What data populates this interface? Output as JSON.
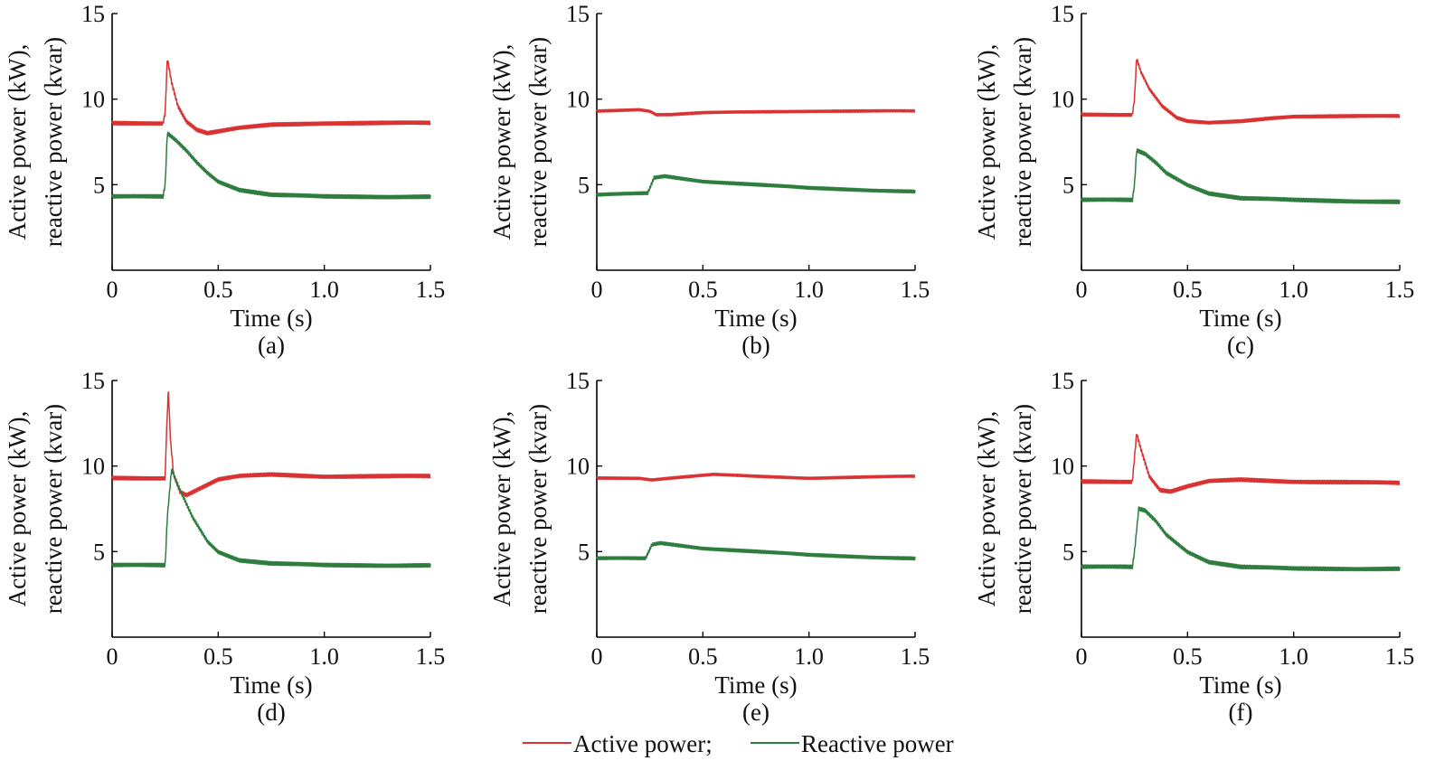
{
  "legend": {
    "items": [
      {
        "label": "Active power;",
        "color": "#d93232",
        "series": "active"
      },
      {
        "label": "Reactive power",
        "color": "#2e7d3e",
        "series": "reactive"
      }
    ]
  },
  "chart_data": [
    {
      "type": "line",
      "caption": "(a)",
      "xlabel": "Time (s)",
      "ylabel": "Active power (kW), reactive power (kvar)",
      "xlim": [
        0,
        1.5
      ],
      "ylim": [
        0,
        15
      ],
      "xticks": [
        {
          "v": 0,
          "t": "0"
        },
        {
          "v": 0.5,
          "t": "0.5"
        },
        {
          "v": 1.0,
          "t": "1.0"
        },
        {
          "v": 1.5,
          "t": "1.5"
        }
      ],
      "yticks": [
        {
          "v": 5,
          "t": "5"
        },
        {
          "v": 10,
          "t": "10"
        },
        {
          "v": 15,
          "t": "15"
        }
      ],
      "series": [
        {
          "key": "active",
          "color": "#d93232",
          "ripple": 0.12,
          "points": [
            [
              0,
              8.6
            ],
            [
              0.24,
              8.6
            ],
            [
              0.25,
              9.2
            ],
            [
              0.26,
              12.4
            ],
            [
              0.28,
              11.0
            ],
            [
              0.31,
              9.6
            ],
            [
              0.35,
              8.7
            ],
            [
              0.4,
              8.2
            ],
            [
              0.45,
              8.0
            ],
            [
              0.5,
              8.1
            ],
            [
              0.6,
              8.3
            ],
            [
              0.75,
              8.5
            ],
            [
              1.0,
              8.6
            ],
            [
              1.5,
              8.6
            ]
          ]
        },
        {
          "key": "reactive",
          "color": "#2e7d3e",
          "ripple": 0.12,
          "points": [
            [
              0,
              4.3
            ],
            [
              0.24,
              4.3
            ],
            [
              0.25,
              5.0
            ],
            [
              0.26,
              8.0
            ],
            [
              0.3,
              7.6
            ],
            [
              0.35,
              7.0
            ],
            [
              0.4,
              6.3
            ],
            [
              0.45,
              5.7
            ],
            [
              0.5,
              5.2
            ],
            [
              0.6,
              4.7
            ],
            [
              0.75,
              4.4
            ],
            [
              1.0,
              4.3
            ],
            [
              1.5,
              4.3
            ]
          ]
        }
      ]
    },
    {
      "type": "line",
      "caption": "(b)",
      "xlabel": "Time (s)",
      "ylabel": "Active power (kW), reactive power (kvar)",
      "xlim": [
        0,
        1.5
      ],
      "ylim": [
        0,
        15
      ],
      "xticks": [
        {
          "v": 0,
          "t": "0"
        },
        {
          "v": 0.5,
          "t": "0.5"
        },
        {
          "v": 1.0,
          "t": "1.0"
        },
        {
          "v": 1.5,
          "t": "1.5"
        }
      ],
      "yticks": [
        {
          "v": 5,
          "t": "5"
        },
        {
          "v": 10,
          "t": "10"
        },
        {
          "v": 15,
          "t": "15"
        }
      ],
      "series": [
        {
          "key": "active",
          "color": "#d93232",
          "ripple": 0.08,
          "points": [
            [
              0,
              9.3
            ],
            [
              0.2,
              9.4
            ],
            [
              0.25,
              9.3
            ],
            [
              0.28,
              9.1
            ],
            [
              0.35,
              9.1
            ],
            [
              0.5,
              9.2
            ],
            [
              1.0,
              9.3
            ],
            [
              1.5,
              9.3
            ]
          ]
        },
        {
          "key": "reactive",
          "color": "#2e7d3e",
          "ripple": 0.1,
          "points": [
            [
              0,
              4.4
            ],
            [
              0.24,
              4.5
            ],
            [
              0.27,
              5.4
            ],
            [
              0.32,
              5.5
            ],
            [
              0.5,
              5.2
            ],
            [
              0.75,
              5.0
            ],
            [
              1.0,
              4.8
            ],
            [
              1.25,
              4.7
            ],
            [
              1.5,
              4.6
            ]
          ]
        }
      ]
    },
    {
      "type": "line",
      "caption": "(c)",
      "xlabel": "Time (s)",
      "ylabel": "Active power (kW), reactive power (kvar)",
      "xlim": [
        0,
        1.5
      ],
      "ylim": [
        0,
        15
      ],
      "xticks": [
        {
          "v": 0,
          "t": "0"
        },
        {
          "v": 0.5,
          "t": "0.5"
        },
        {
          "v": 1.0,
          "t": "1.0"
        },
        {
          "v": 1.5,
          "t": "1.5"
        }
      ],
      "yticks": [
        {
          "v": 5,
          "t": "5"
        },
        {
          "v": 10,
          "t": "10"
        },
        {
          "v": 15,
          "t": "15"
        }
      ],
      "series": [
        {
          "key": "active",
          "color": "#d93232",
          "ripple": 0.1,
          "points": [
            [
              0,
              9.1
            ],
            [
              0.24,
              9.1
            ],
            [
              0.25,
              10.0
            ],
            [
              0.26,
              12.4
            ],
            [
              0.28,
              11.6
            ],
            [
              0.32,
              10.6
            ],
            [
              0.38,
              9.6
            ],
            [
              0.45,
              8.9
            ],
            [
              0.5,
              8.7
            ],
            [
              0.6,
              8.6
            ],
            [
              0.75,
              8.7
            ],
            [
              0.9,
              8.9
            ],
            [
              1.0,
              9.0
            ],
            [
              1.5,
              9.0
            ]
          ]
        },
        {
          "key": "reactive",
          "color": "#2e7d3e",
          "ripple": 0.12,
          "points": [
            [
              0,
              4.1
            ],
            [
              0.24,
              4.1
            ],
            [
              0.25,
              5.0
            ],
            [
              0.26,
              7.0
            ],
            [
              0.3,
              6.8
            ],
            [
              0.35,
              6.3
            ],
            [
              0.4,
              5.7
            ],
            [
              0.5,
              5.0
            ],
            [
              0.6,
              4.5
            ],
            [
              0.75,
              4.2
            ],
            [
              1.0,
              4.1
            ],
            [
              1.5,
              4.0
            ]
          ]
        }
      ]
    },
    {
      "type": "line",
      "caption": "(d)",
      "xlabel": "Time (s)",
      "ylabel": "Active power (kW), reactive power (kvar)",
      "xlim": [
        0,
        1.5
      ],
      "ylim": [
        0,
        15
      ],
      "xticks": [
        {
          "v": 0,
          "t": "0"
        },
        {
          "v": 0.5,
          "t": "0.5"
        },
        {
          "v": 1.0,
          "t": "1.0"
        },
        {
          "v": 1.5,
          "t": "1.5"
        }
      ],
      "yticks": [
        {
          "v": 5,
          "t": "5"
        },
        {
          "v": 10,
          "t": "10"
        },
        {
          "v": 15,
          "t": "15"
        }
      ],
      "series": [
        {
          "key": "active",
          "color": "#d93232",
          "ripple": 0.12,
          "points": [
            [
              0,
              9.3
            ],
            [
              0.25,
              9.3
            ],
            [
              0.255,
              11.5
            ],
            [
              0.265,
              14.5
            ],
            [
              0.275,
              11.5
            ],
            [
              0.29,
              9.5
            ],
            [
              0.32,
              8.5
            ],
            [
              0.35,
              8.3
            ],
            [
              0.4,
              8.6
            ],
            [
              0.5,
              9.2
            ],
            [
              0.6,
              9.4
            ],
            [
              0.75,
              9.5
            ],
            [
              1.0,
              9.4
            ],
            [
              1.5,
              9.4
            ]
          ]
        },
        {
          "key": "reactive",
          "color": "#2e7d3e",
          "ripple": 0.12,
          "points": [
            [
              0,
              4.2
            ],
            [
              0.25,
              4.2
            ],
            [
              0.26,
              7.0
            ],
            [
              0.28,
              9.8
            ],
            [
              0.32,
              8.6
            ],
            [
              0.38,
              7.0
            ],
            [
              0.45,
              5.6
            ],
            [
              0.5,
              5.0
            ],
            [
              0.6,
              4.5
            ],
            [
              0.75,
              4.3
            ],
            [
              1.0,
              4.2
            ],
            [
              1.5,
              4.2
            ]
          ]
        }
      ]
    },
    {
      "type": "line",
      "caption": "(e)",
      "xlabel": "Time (s)",
      "ylabel": "Active power (kW), reactive power (kvar)",
      "xlim": [
        0,
        1.5
      ],
      "ylim": [
        0,
        15
      ],
      "xticks": [
        {
          "v": 0,
          "t": "0"
        },
        {
          "v": 0.5,
          "t": "0.5"
        },
        {
          "v": 1.0,
          "t": "1.0"
        },
        {
          "v": 1.5,
          "t": "1.5"
        }
      ],
      "yticks": [
        {
          "v": 5,
          "t": "5"
        },
        {
          "v": 10,
          "t": "10"
        },
        {
          "v": 15,
          "t": "15"
        }
      ],
      "series": [
        {
          "key": "active",
          "color": "#d93232",
          "ripple": 0.08,
          "points": [
            [
              0,
              9.3
            ],
            [
              0.2,
              9.3
            ],
            [
              0.26,
              9.2
            ],
            [
              0.35,
              9.3
            ],
            [
              0.55,
              9.5
            ],
            [
              0.75,
              9.4
            ],
            [
              1.0,
              9.3
            ],
            [
              1.5,
              9.4
            ]
          ]
        },
        {
          "key": "reactive",
          "color": "#2e7d3e",
          "ripple": 0.1,
          "points": [
            [
              0,
              4.6
            ],
            [
              0.23,
              4.6
            ],
            [
              0.26,
              5.4
            ],
            [
              0.3,
              5.5
            ],
            [
              0.5,
              5.2
            ],
            [
              0.75,
              5.0
            ],
            [
              1.0,
              4.8
            ],
            [
              1.25,
              4.7
            ],
            [
              1.5,
              4.6
            ]
          ]
        }
      ]
    },
    {
      "type": "line",
      "caption": "(f)",
      "xlabel": "Time (s)",
      "ylabel": "Active power (kW), reactive power (kvar)",
      "xlim": [
        0,
        1.5
      ],
      "ylim": [
        0,
        15
      ],
      "xticks": [
        {
          "v": 0,
          "t": "0"
        },
        {
          "v": 0.5,
          "t": "0.5"
        },
        {
          "v": 1.0,
          "t": "1.0"
        },
        {
          "v": 1.5,
          "t": "1.5"
        }
      ],
      "yticks": [
        {
          "v": 5,
          "t": "5"
        },
        {
          "v": 10,
          "t": "10"
        },
        {
          "v": 15,
          "t": "15"
        }
      ],
      "series": [
        {
          "key": "active",
          "color": "#d93232",
          "ripple": 0.12,
          "points": [
            [
              0,
              9.1
            ],
            [
              0.24,
              9.1
            ],
            [
              0.25,
              10.5
            ],
            [
              0.26,
              11.9
            ],
            [
              0.28,
              11.0
            ],
            [
              0.32,
              9.4
            ],
            [
              0.37,
              8.6
            ],
            [
              0.42,
              8.5
            ],
            [
              0.5,
              8.8
            ],
            [
              0.6,
              9.1
            ],
            [
              0.75,
              9.2
            ],
            [
              1.0,
              9.1
            ],
            [
              1.5,
              9.0
            ]
          ]
        },
        {
          "key": "reactive",
          "color": "#2e7d3e",
          "ripple": 0.12,
          "points": [
            [
              0,
              4.1
            ],
            [
              0.24,
              4.1
            ],
            [
              0.25,
              5.0
            ],
            [
              0.27,
              7.5
            ],
            [
              0.3,
              7.4
            ],
            [
              0.35,
              6.8
            ],
            [
              0.4,
              6.0
            ],
            [
              0.5,
              5.0
            ],
            [
              0.6,
              4.4
            ],
            [
              0.75,
              4.1
            ],
            [
              1.0,
              4.0
            ],
            [
              1.5,
              4.0
            ]
          ]
        }
      ]
    }
  ]
}
